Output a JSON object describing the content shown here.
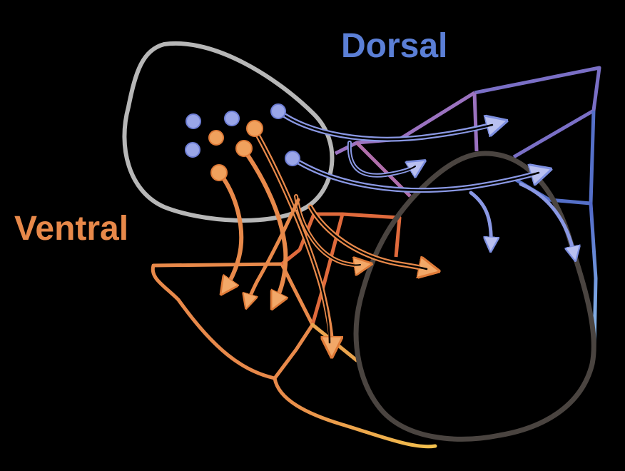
{
  "labels": {
    "dorsal": "Dorsal",
    "ventral": "Ventral"
  },
  "colors": {
    "background": "#000000",
    "dorsal": "#5b7fd6",
    "ventral": "#e8894a",
    "source_region": "#b7b7b7",
    "target_region": "#4a4440",
    "dorsal_dot": "#9aa6e8",
    "ventral_dot": "#f0a15d",
    "dorsal_arrow_fill": "#b9c0f0",
    "ventral_arrow_fill": "#f2a868"
  }
}
